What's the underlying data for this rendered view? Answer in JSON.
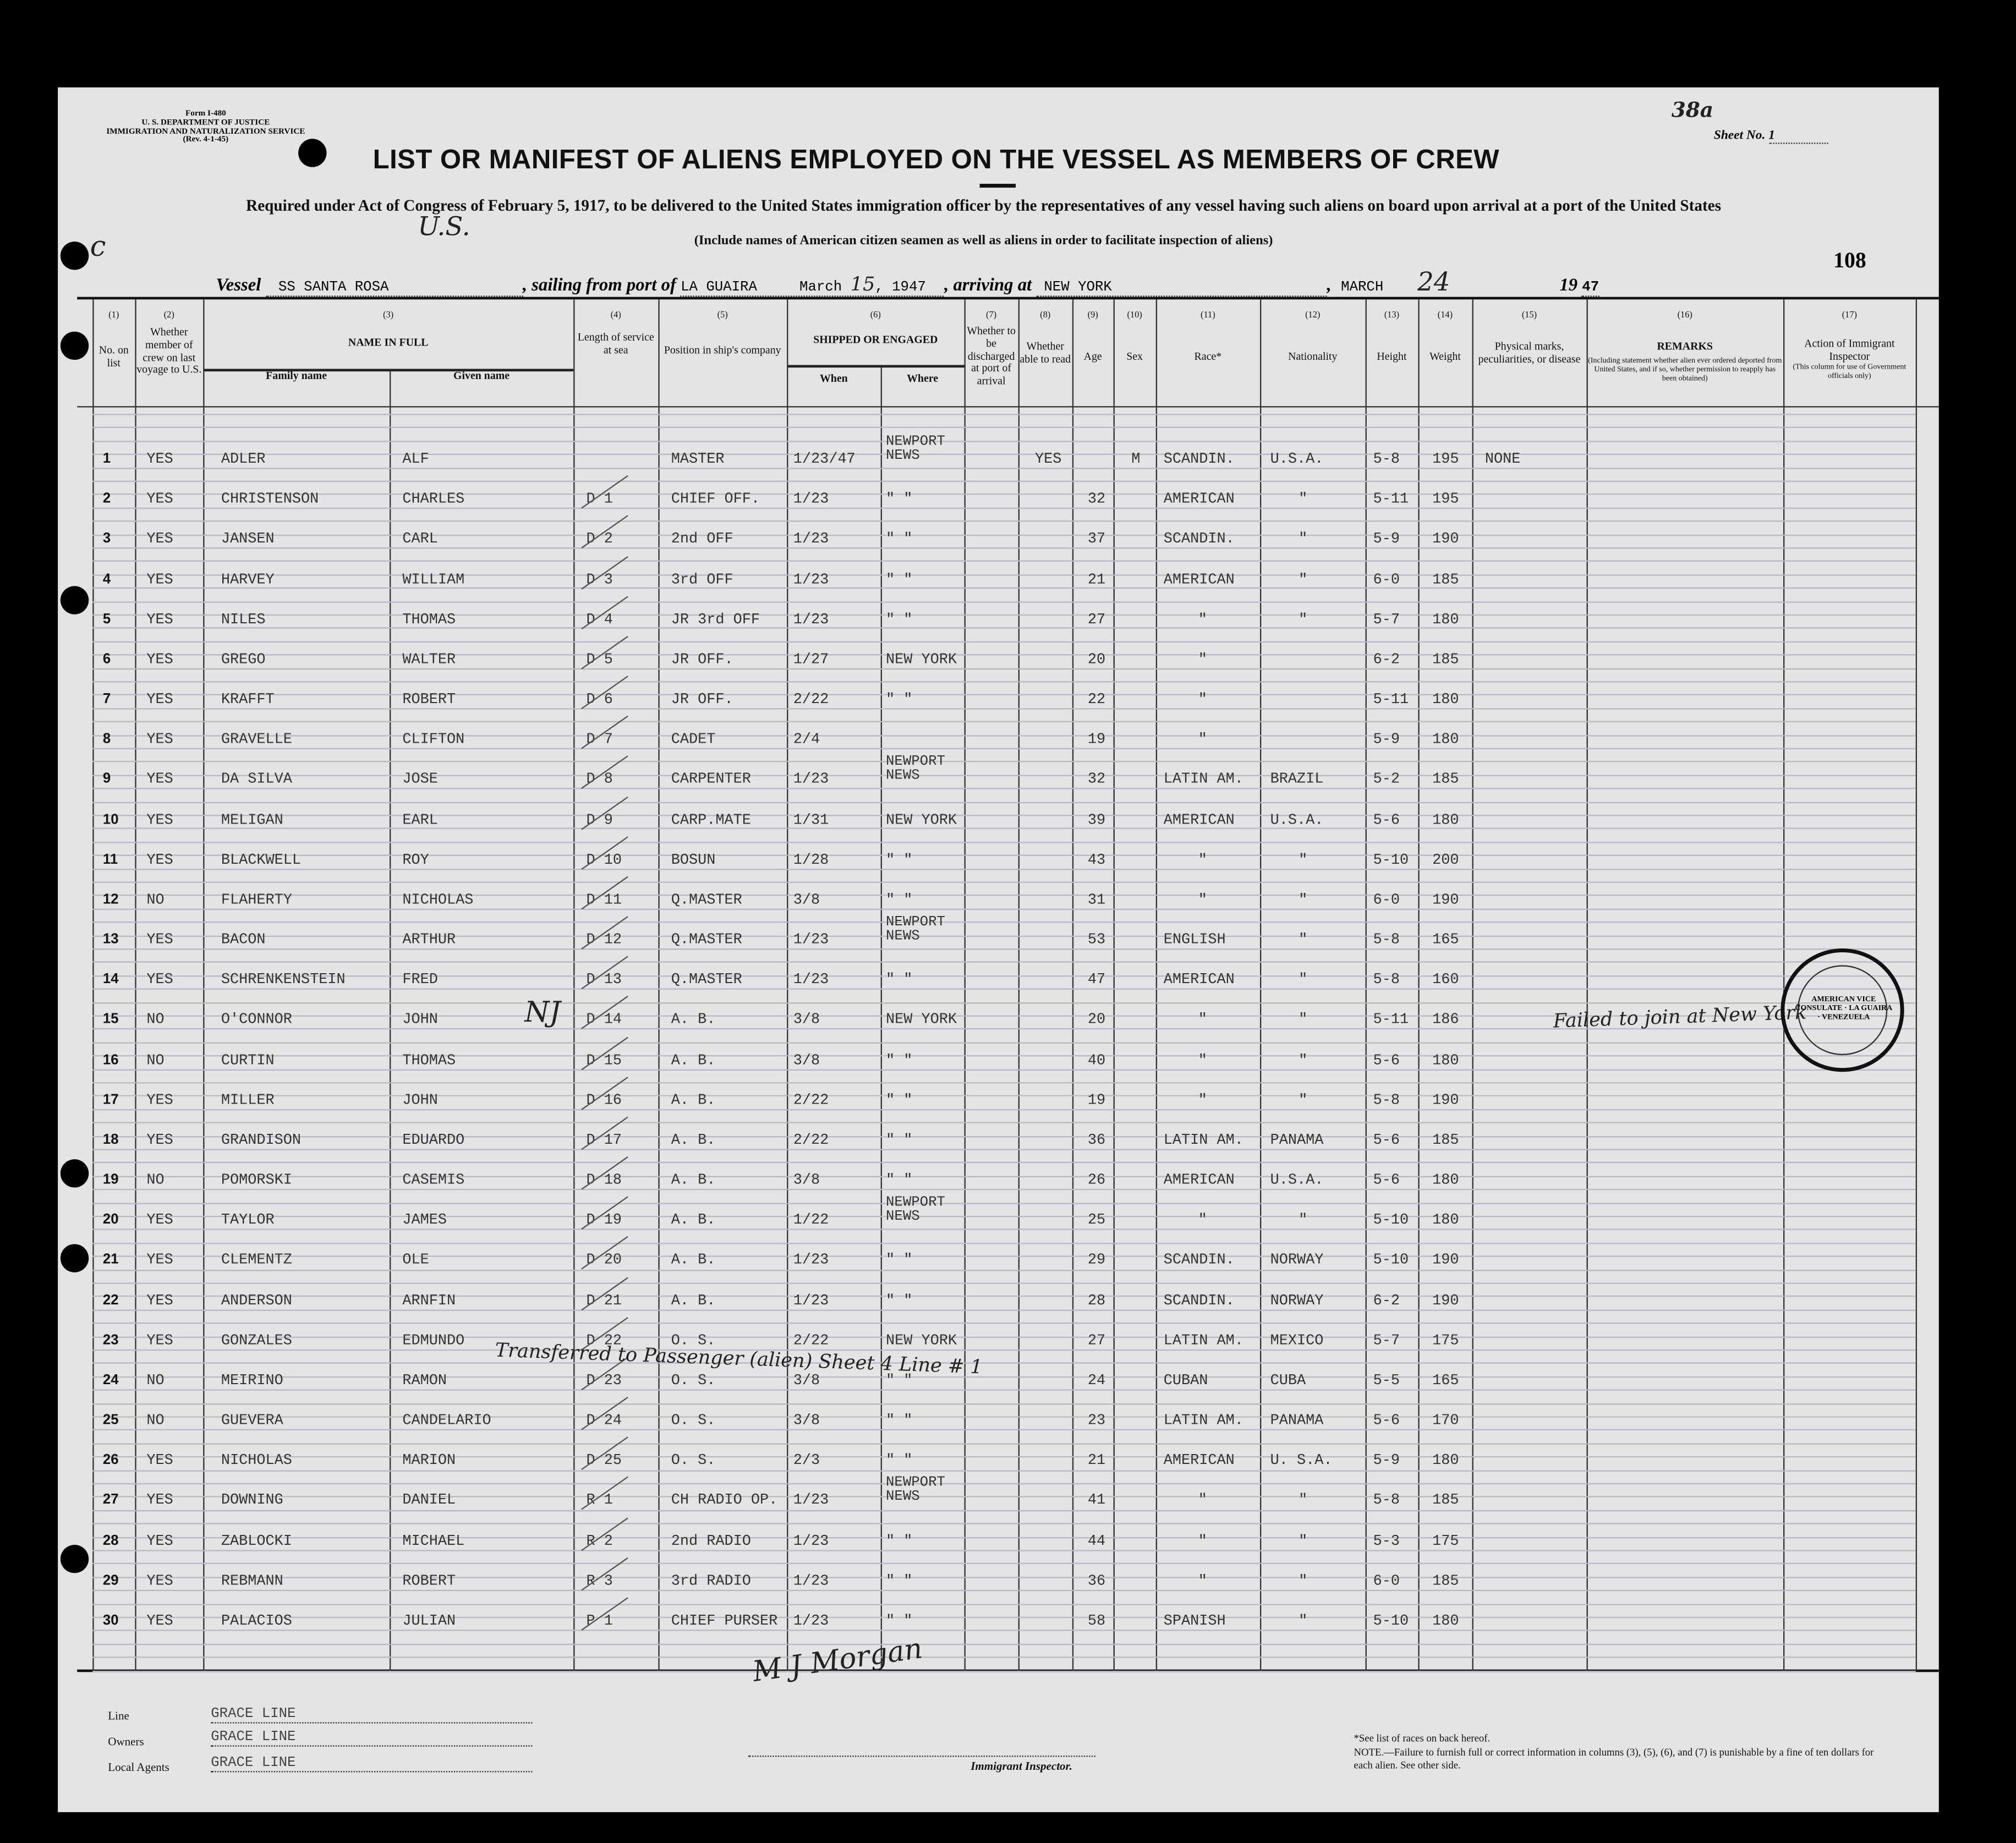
{
  "form": {
    "form_no": "Form I-480",
    "department": "U. S. DEPARTMENT OF JUSTICE",
    "service": "IMMIGRATION AND NATURALIZATION SERVICE",
    "rev": "(Rev. 4-1-45)",
    "sheet_label": "Sheet No.",
    "sheet_no": "1",
    "sheet_handwritten": "38a",
    "page_number": "108",
    "title": "LIST OR MANIFEST OF ALIENS EMPLOYED ON THE VESSEL AS MEMBERS OF CREW",
    "subtitle": "Required under Act of Congress of February 5, 1917, to be delivered to the United States immigration officer by the representatives of any vessel having such aliens on board upon arrival at a port of the United States",
    "note_include": "(Include names of American citizen seamen as well as aliens in order to facilitate inspection of aliens)",
    "handwritten_us": "U.S."
  },
  "voyage": {
    "vessel_label": "Vessel",
    "vessel": "SS SANTA ROSA",
    "sailing_label": ", sailing from port of",
    "port": "LA GUAIRA",
    "sail_month": "March",
    "sail_day": "15",
    "sail_year": ", 1947",
    "arriving_label": ", arriving at",
    "arrival_port": "NEW YORK",
    "arrival_month": "MARCH",
    "arrival_day": "24",
    "year_prefix": "19",
    "arrival_year": "47"
  },
  "columns": {
    "c1": {
      "num": "(1)",
      "label": "No. on list"
    },
    "c2": {
      "num": "(2)",
      "label": "Whether member of crew on last voyage to U.S."
    },
    "c3": {
      "num": "(3)",
      "label": "NAME IN FULL",
      "family": "Family name",
      "given": "Given name"
    },
    "c4": {
      "num": "(4)",
      "label": "Length of service at sea"
    },
    "c5": {
      "num": "(5)",
      "label": "Position in ship's company"
    },
    "c6": {
      "num": "(6)",
      "label": "SHIPPED OR ENGAGED",
      "when": "When",
      "where": "Where"
    },
    "c7": {
      "num": "(7)",
      "label": "Whether to be discharged at port of arrival"
    },
    "c8": {
      "num": "(8)",
      "label": "Whether able to read"
    },
    "c9": {
      "num": "(9)",
      "label": "Age"
    },
    "c10": {
      "num": "(10)",
      "label": "Sex"
    },
    "c11": {
      "num": "(11)",
      "label": "Race*"
    },
    "c12": {
      "num": "(12)",
      "label": "Nationality"
    },
    "c13": {
      "num": "(13)",
      "label": "Height"
    },
    "c14": {
      "num": "(14)",
      "label": "Weight"
    },
    "c15": {
      "num": "(15)",
      "label": "Physical marks, peculiarities, or disease"
    },
    "c16": {
      "num": "(16)",
      "label": "REMARKS",
      "sub": "(Including statement whether alien ever ordered deported from United States, and if so, whether permission to reapply has been obtained)"
    },
    "c17": {
      "num": "(17)",
      "label": "Action of Immigrant Inspector",
      "sub": "(This column for use of Government officials only)"
    }
  },
  "rows": [
    {
      "no": "1",
      "voy": "YES",
      "fam": "ADLER",
      "giv": "ALF",
      "len": "",
      "pos": "MASTER",
      "when": "1/23/47",
      "where": "NEWPORT NEWS",
      "read": "YES",
      "age": "",
      "sex": "M",
      "race": "SCANDIN.",
      "nat": "U.S.A.",
      "ht": "5-8",
      "wt": "195",
      "marks": "NONE"
    },
    {
      "no": "2",
      "voy": "YES",
      "fam": "CHRISTENSON",
      "giv": "CHARLES",
      "len": "D 1",
      "pos": "CHIEF OFF.",
      "when": "1/23",
      "where": "\" \"",
      "age": "32",
      "race": "AMERICAN",
      "nat": "\"",
      "ht": "5-11",
      "wt": "195"
    },
    {
      "no": "3",
      "voy": "YES",
      "fam": "JANSEN",
      "giv": "CARL",
      "len": "D 2",
      "pos": "2nd OFF",
      "when": "1/23",
      "where": "\" \"",
      "age": "37",
      "race": "SCANDIN.",
      "nat": "\"",
      "ht": "5-9",
      "wt": "190"
    },
    {
      "no": "4",
      "voy": "YES",
      "fam": "HARVEY",
      "giv": "WILLIAM",
      "len": "D 3",
      "pos": "3rd OFF",
      "when": "1/23",
      "where": "\" \"",
      "age": "21",
      "race": "AMERICAN",
      "nat": "\"",
      "ht": "6-0",
      "wt": "185"
    },
    {
      "no": "5",
      "voy": "YES",
      "fam": "NILES",
      "giv": "THOMAS",
      "len": "D 4",
      "pos": "JR 3rd OFF",
      "when": "1/23",
      "where": "\" \"",
      "age": "27",
      "race": "\"",
      "nat": "\"",
      "ht": "5-7",
      "wt": "180"
    },
    {
      "no": "6",
      "voy": "YES",
      "fam": "GREGO",
      "giv": "WALTER",
      "len": "D 5",
      "pos": "JR OFF.",
      "when": "1/27",
      "where": "NEW YORK",
      "age": "20",
      "race": "\"",
      "nat": "",
      "ht": "6-2",
      "wt": "185"
    },
    {
      "no": "7",
      "voy": "YES",
      "fam": "KRAFFT",
      "giv": "ROBERT",
      "len": "D 6",
      "pos": "JR OFF.",
      "when": "2/22",
      "where": "\" \"",
      "age": "22",
      "race": "\"",
      "nat": "",
      "ht": "5-11",
      "wt": "180"
    },
    {
      "no": "8",
      "voy": "YES",
      "fam": "GRAVELLE",
      "giv": "CLIFTON",
      "len": "D 7",
      "pos": "CADET",
      "when": "2/4",
      "where": "",
      "age": "19",
      "race": "\"",
      "nat": "",
      "ht": "5-9",
      "wt": "180"
    },
    {
      "no": "9",
      "voy": "YES",
      "fam": "DA SILVA",
      "giv": "JOSE",
      "len": "D 8",
      "pos": "CARPENTER",
      "when": "1/23",
      "where": "NEWPORT NEWS",
      "age": "32",
      "race": "LATIN AM.",
      "nat": "BRAZIL",
      "ht": "5-2",
      "wt": "185"
    },
    {
      "no": "10",
      "voy": "YES",
      "fam": "MELIGAN",
      "giv": "EARL",
      "len": "D 9",
      "pos": "CARP.MATE",
      "when": "1/31",
      "where": "NEW YORK",
      "age": "39",
      "race": "AMERICAN",
      "nat": "U.S.A.",
      "ht": "5-6",
      "wt": "180"
    },
    {
      "no": "11",
      "voy": "YES",
      "fam": "BLACKWELL",
      "giv": "ROY",
      "len": "D 10",
      "pos": "BOSUN",
      "when": "1/28",
      "where": "\" \"",
      "age": "43",
      "race": "\"",
      "nat": "\"",
      "ht": "5-10",
      "wt": "200"
    },
    {
      "no": "12",
      "voy": "NO",
      "fam": "FLAHERTY",
      "giv": "NICHOLAS",
      "len": "D 11",
      "pos": "Q.MASTER",
      "when": "3/8",
      "where": "\" \"",
      "age": "31",
      "race": "\"",
      "nat": "\"",
      "ht": "6-0",
      "wt": "190"
    },
    {
      "no": "13",
      "voy": "YES",
      "fam": "BACON",
      "giv": "ARTHUR",
      "len": "D 12",
      "pos": "Q.MASTER",
      "when": "1/23",
      "where": "NEWPORT NEWS",
      "age": "53",
      "race": "ENGLISH",
      "nat": "\"",
      "ht": "5-8",
      "wt": "165"
    },
    {
      "no": "14",
      "voy": "YES",
      "fam": "SCHRENKENSTEIN",
      "giv": "FRED",
      "len": "D 13",
      "pos": "Q.MASTER",
      "when": "1/23",
      "where": "\" \"",
      "age": "47",
      "race": "AMERICAN",
      "nat": "\"",
      "ht": "5-8",
      "wt": "160"
    },
    {
      "no": "15",
      "voy": "NO",
      "fam": "O'CONNOR",
      "giv": "JOHN",
      "len": "D 14",
      "pos": "A. B.",
      "when": "3/8",
      "where": "NEW YORK",
      "age": "20",
      "race": "\"",
      "nat": "\"",
      "ht": "5-11",
      "wt": "186",
      "remark": "Failed to join at New York"
    },
    {
      "no": "16",
      "voy": "NO",
      "fam": "CURTIN",
      "giv": "THOMAS",
      "len": "D 15",
      "pos": "A. B.",
      "when": "3/8",
      "where": "\" \"",
      "age": "40",
      "race": "\"",
      "nat": "\"",
      "ht": "5-6",
      "wt": "180"
    },
    {
      "no": "17",
      "voy": "YES",
      "fam": "MILLER",
      "giv": "JOHN",
      "len": "D 16",
      "pos": "A. B.",
      "when": "2/22",
      "where": "\" \"",
      "age": "19",
      "race": "\"",
      "nat": "\"",
      "ht": "5-8",
      "wt": "190"
    },
    {
      "no": "18",
      "voy": "YES",
      "fam": "GRANDISON",
      "giv": "EDUARDO",
      "len": "D 17",
      "pos": "A. B.",
      "when": "2/22",
      "where": "\" \"",
      "age": "36",
      "race": "LATIN AM.",
      "nat": "PANAMA",
      "ht": "5-6",
      "wt": "185"
    },
    {
      "no": "19",
      "voy": "NO",
      "fam": "POMORSKI",
      "giv": "CASEMIS",
      "len": "D 18",
      "pos": "A. B.",
      "when": "3/8",
      "where": "\" \"",
      "age": "26",
      "race": "AMERICAN",
      "nat": "U.S.A.",
      "ht": "5-6",
      "wt": "180"
    },
    {
      "no": "20",
      "voy": "YES",
      "fam": "TAYLOR",
      "giv": "JAMES",
      "len": "D 19",
      "pos": "A. B.",
      "when": "1/22",
      "where": "NEWPORT NEWS",
      "age": "25",
      "race": "\"",
      "nat": "\"",
      "ht": "5-10",
      "wt": "180"
    },
    {
      "no": "21",
      "voy": "YES",
      "fam": "CLEMENTZ",
      "giv": "OLE",
      "len": "D 20",
      "pos": "A. B.",
      "when": "1/23",
      "where": "\" \"",
      "age": "29",
      "race": "SCANDIN.",
      "nat": "NORWAY",
      "ht": "5-10",
      "wt": "190"
    },
    {
      "no": "22",
      "voy": "YES",
      "fam": "ANDERSON",
      "giv": "ARNFIN",
      "len": "D 21",
      "pos": "A. B.",
      "when": "1/23",
      "where": "\" \"",
      "age": "28",
      "race": "SCANDIN.",
      "nat": "NORWAY",
      "ht": "6-2",
      "wt": "190"
    },
    {
      "no": "23",
      "voy": "YES",
      "fam": "GONZALES",
      "giv": "EDMUNDO",
      "len": "D 22",
      "pos": "O. S.",
      "when": "2/22",
      "where": "NEW YORK",
      "age": "27",
      "race": "LATIN AM.",
      "nat": "MEXICO",
      "ht": "5-7",
      "wt": "175"
    },
    {
      "no": "24",
      "voy": "NO",
      "fam": "MEIRINO",
      "giv": "RAMON",
      "len": "D 23",
      "pos": "O. S.",
      "when": "3/8",
      "where": "\" \"",
      "age": "24",
      "race": "CUBAN",
      "nat": "CUBA",
      "ht": "5-5",
      "wt": "165"
    },
    {
      "no": "25",
      "voy": "NO",
      "fam": "GUEVERA",
      "giv": "CANDELARIO",
      "len": "D 24",
      "pos": "O. S.",
      "when": "3/8",
      "where": "\" \"",
      "age": "23",
      "race": "LATIN AM.",
      "nat": "PANAMA",
      "ht": "5-6",
      "wt": "170"
    },
    {
      "no": "26",
      "voy": "YES",
      "fam": "NICHOLAS",
      "giv": "MARION",
      "len": "D 25",
      "pos": "O. S.",
      "when": "2/3",
      "where": "\" \"",
      "age": "21",
      "race": "AMERICAN",
      "nat": "U. S.A.",
      "ht": "5-9",
      "wt": "180"
    },
    {
      "no": "27",
      "voy": "YES",
      "fam": "DOWNING",
      "giv": "DANIEL",
      "len": "R 1",
      "pos": "CH RADIO OP.",
      "when": "1/23",
      "where": "NEWPORT NEWS",
      "age": "41",
      "race": "\"",
      "nat": "\"",
      "ht": "5-8",
      "wt": "185"
    },
    {
      "no": "28",
      "voy": "YES",
      "fam": "ZABLOCKI",
      "giv": "MICHAEL",
      "len": "R 2",
      "pos": "2nd RADIO",
      "when": "1/23",
      "where": "\" \"",
      "age": "44",
      "race": "\"",
      "nat": "\"",
      "ht": "5-3",
      "wt": "175"
    },
    {
      "no": "29",
      "voy": "YES",
      "fam": "REBMANN",
      "giv": "ROBERT",
      "len": "R 3",
      "pos": "3rd RADIO",
      "when": "1/23",
      "where": "\" \"",
      "age": "36",
      "race": "\"",
      "nat": "\"",
      "ht": "6-0",
      "wt": "185"
    },
    {
      "no": "30",
      "voy": "YES",
      "fam": "PALACIOS",
      "giv": "JULIAN",
      "len": "P 1",
      "pos": "CHIEF PURSER",
      "when": "1/23",
      "where": "\" \"",
      "age": "58",
      "race": "SPANISH",
      "nat": "\"",
      "ht": "5-10",
      "wt": "180"
    }
  ],
  "annotations": {
    "transfer_note": "Transferred to Passenger (alien) Sheet 4 Line # 1",
    "stamp_text": "AMERICAN VICE CONSULATE · LA GUAIRA · VENEZUELA",
    "signature": "M J Morgan",
    "initials_row15": "NJ"
  },
  "footer": {
    "line_label": "Line",
    "line_value": "GRACE LINE",
    "owners_label": "Owners",
    "owners_value": "GRACE LINE",
    "agents_label": "Local Agents",
    "agents_value": "GRACE LINE",
    "inspector_label": "Immigrant Inspector.",
    "races_note": "*See list of races on back hereof.",
    "note": "NOTE.—Failure to furnish full or correct information in columns (3), (5), (6), and (7) is punishable by a fine of ten dollars for each alien.  See other side."
  }
}
